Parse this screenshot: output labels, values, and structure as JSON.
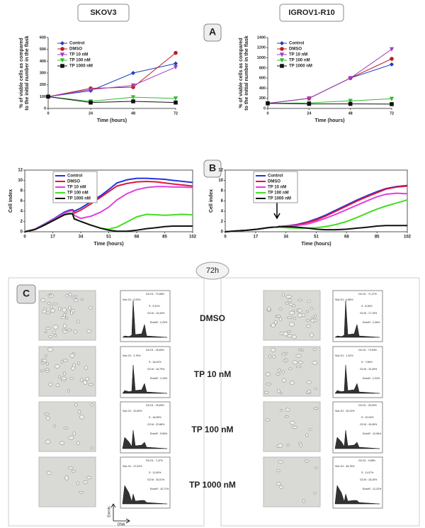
{
  "headers": [
    "SKOV3",
    "IGROV1-R10"
  ],
  "panel_labels": [
    "A",
    "B"
  ],
  "chart_data": [
    {
      "type": "line",
      "markers": true,
      "legend": "upper left",
      "legend_frame": false,
      "frame": false,
      "x": [
        0,
        24,
        48,
        72
      ],
      "xlim": [
        0,
        72
      ],
      "xticks": [
        0,
        24,
        48,
        72
      ],
      "ylim": [
        0,
        600
      ],
      "yticks": [
        0,
        100,
        200,
        300,
        400,
        500,
        600
      ],
      "xlabel": "Time (hours)",
      "ylabel": [
        "% of viable cells as compared",
        "to the initial number in the flask"
      ],
      "series": [
        {
          "name": "Control",
          "color": "#1f3fbf",
          "marker": "diamond",
          "values": [
            100,
            150,
            300,
            380
          ]
        },
        {
          "name": "DMSO",
          "color": "#b82020",
          "marker": "circle",
          "values": [
            100,
            170,
            180,
            470
          ]
        },
        {
          "name": "TP 10 nM",
          "color": "#a040c0",
          "marker": "triangle-down",
          "values": [
            100,
            160,
            195,
            350
          ]
        },
        {
          "name": "TP 100 nM",
          "color": "#33bb33",
          "marker": "triangle-down",
          "values": [
            100,
            60,
            95,
            85
          ]
        },
        {
          "name": "TP 1000 nM",
          "color": "#111111",
          "marker": "square",
          "values": [
            100,
            50,
            60,
            50
          ]
        }
      ]
    },
    {
      "type": "line",
      "markers": true,
      "legend": "upper left",
      "legend_frame": false,
      "frame": false,
      "x": [
        0,
        24,
        48,
        72
      ],
      "xlim": [
        0,
        72
      ],
      "xticks": [
        0,
        24,
        48,
        72
      ],
      "ylim": [
        0,
        1400
      ],
      "yticks": [
        0,
        200,
        400,
        600,
        800,
        1000,
        1200,
        1400
      ],
      "xlabel": "Time (hours)",
      "ylabel": [
        "% of viable cells as compared",
        "to the initial number in the flask"
      ],
      "series": [
        {
          "name": "Control",
          "color": "#1f3fbf",
          "marker": "diamond",
          "values": [
            100,
            200,
            600,
            870
          ]
        },
        {
          "name": "DMSO",
          "color": "#b82020",
          "marker": "circle",
          "values": [
            100,
            200,
            600,
            980
          ]
        },
        {
          "name": "TP 10 nM",
          "color": "#a040c0",
          "marker": "triangle-down",
          "values": [
            100,
            200,
            600,
            1170
          ]
        },
        {
          "name": "TP 100 nM",
          "color": "#33bb33",
          "marker": "triangle-down",
          "values": [
            100,
            110,
            150,
            190
          ]
        },
        {
          "name": "TP 1000 nM",
          "color": "#111111",
          "marker": "square",
          "values": [
            100,
            90,
            90,
            85
          ]
        }
      ]
    },
    {
      "type": "line",
      "markers": false,
      "legend": "upper left",
      "legend_frame": true,
      "frame": true,
      "x": [
        0,
        6,
        12,
        18,
        24,
        27,
        29,
        30,
        34,
        40,
        46,
        51,
        56,
        62,
        68,
        74,
        80,
        85,
        90,
        96,
        102
      ],
      "xlim": [
        0,
        102
      ],
      "xticks": [
        0,
        17,
        34,
        51,
        68,
        85,
        102
      ],
      "ylim": [
        0,
        12
      ],
      "yticks": [
        0,
        2,
        4,
        6,
        8,
        10,
        12
      ],
      "xlabel": "Time (hours)",
      "ylabel": [
        "Cell index"
      ],
      "series": [
        {
          "name": "Control",
          "color": "#2233dd",
          "values": [
            0,
            0.5,
            1.5,
            2.6,
            3.8,
            4.2,
            4.3,
            4.0,
            4.6,
            5.8,
            7.0,
            8.2,
            9.5,
            10.1,
            10.4,
            10.4,
            10.3,
            10.2,
            10.0,
            9.8,
            9.6
          ]
        },
        {
          "name": "DMSO",
          "color": "#e0153a",
          "values": [
            0,
            0.5,
            1.4,
            2.5,
            3.6,
            4.0,
            4.1,
            3.6,
            4.2,
            5.4,
            6.7,
            7.8,
            8.9,
            9.4,
            9.7,
            9.8,
            9.7,
            9.5,
            9.3,
            9.1,
            8.9
          ]
        },
        {
          "name": "TP 10 nM",
          "color": "#e040e0",
          "values": [
            0,
            0.5,
            1.4,
            2.5,
            3.6,
            4.0,
            4.1,
            3.2,
            2.6,
            3.0,
            3.8,
            4.8,
            6.2,
            7.4,
            8.2,
            8.6,
            8.8,
            8.8,
            8.7,
            8.7,
            8.6
          ]
        },
        {
          "name": "TP 100 nM",
          "color": "#44dd22",
          "values": [
            0,
            0.4,
            1.3,
            2.3,
            3.3,
            3.6,
            3.6,
            2.6,
            2.0,
            1.3,
            0.7,
            0.5,
            0.9,
            1.9,
            2.9,
            3.4,
            3.3,
            3.2,
            3.3,
            3.4,
            3.3
          ]
        },
        {
          "name": "TP 1000 nM",
          "color": "#111111",
          "values": [
            0,
            0.4,
            1.3,
            2.3,
            3.3,
            3.5,
            3.5,
            2.5,
            2.0,
            1.3,
            0.7,
            0.3,
            0.1,
            0.1,
            0.3,
            0.6,
            0.8,
            1.0,
            1.1,
            1.1,
            1.1
          ]
        }
      ]
    },
    {
      "type": "line",
      "markers": false,
      "legend": "upper left",
      "legend_frame": true,
      "frame": true,
      "x": [
        0,
        6,
        12,
        18,
        24,
        27,
        29,
        30,
        34,
        40,
        46,
        51,
        56,
        62,
        68,
        74,
        80,
        85,
        90,
        96,
        102
      ],
      "xlim": [
        0,
        102
      ],
      "xticks": [
        0,
        17,
        34,
        51,
        68,
        85,
        102
      ],
      "ylim": [
        0,
        12
      ],
      "yticks": [
        0,
        2,
        4,
        6,
        8,
        10,
        12
      ],
      "xlabel": "Time (hours)",
      "ylabel": [
        "Cell index"
      ],
      "series": [
        {
          "name": "Control",
          "color": "#2233dd",
          "values": [
            0,
            0.15,
            0.3,
            0.5,
            0.8,
            0.9,
            0.9,
            1.0,
            1.1,
            1.4,
            1.9,
            2.5,
            3.2,
            4.2,
            5.2,
            6.2,
            7.1,
            7.8,
            8.4,
            8.8,
            9.0
          ]
        },
        {
          "name": "DMSO",
          "color": "#e0153a",
          "values": [
            0,
            0.15,
            0.3,
            0.5,
            0.8,
            0.9,
            0.9,
            1.0,
            1.1,
            1.3,
            1.8,
            2.3,
            3.0,
            4.0,
            5.0,
            6.0,
            6.9,
            7.6,
            8.3,
            8.7,
            8.9
          ]
        },
        {
          "name": "TP 10 nM",
          "color": "#e040e0",
          "values": [
            0,
            0.15,
            0.3,
            0.5,
            0.8,
            0.9,
            0.9,
            1.0,
            1.0,
            1.2,
            1.5,
            2.0,
            2.6,
            3.4,
            4.3,
            5.2,
            6.1,
            6.8,
            7.3,
            7.5,
            7.4
          ]
        },
        {
          "name": "TP 100 nM",
          "color": "#44dd22",
          "values": [
            0,
            0.15,
            0.3,
            0.5,
            0.8,
            0.9,
            0.9,
            0.9,
            0.8,
            0.7,
            0.7,
            0.8,
            1.0,
            1.4,
            2.0,
            2.8,
            3.7,
            4.4,
            5.0,
            5.6,
            6.2
          ]
        },
        {
          "name": "TP 1000 nM",
          "color": "#111111",
          "values": [
            0,
            0.15,
            0.3,
            0.5,
            0.8,
            0.9,
            0.9,
            1.0,
            1.0,
            0.9,
            0.7,
            0.5,
            0.4,
            0.4,
            0.5,
            0.7,
            0.9,
            1.1,
            1.2,
            1.2,
            1.2
          ]
        }
      ]
    }
  ],
  "panel_c": {
    "label": "C",
    "time": "72h",
    "axis_y": "Events",
    "axis_x": "DNA",
    "conditions": [
      "DMSO",
      "TP 10 nM",
      "TP 100 nM",
      "TP 1000 nM"
    ],
    "skov3": [
      [
        "G0-G1 : 70,56%",
        "Sub-G1 : 0,93%",
        "S : 9,41%",
        "G2-M : 15,44%",
        "EndoR : 2,29%"
      ],
      [
        "G0-G1 : 49,83%",
        "Sub-G1 : 2,76%",
        "S : 18,42%",
        "G2-M : 15,79%",
        "EndoR : 2,15%"
      ],
      [
        "G0-G1 : 25,60%",
        "Sub-G1 : 20,89%",
        "S : 16,08%",
        "G2-M : 22,68%",
        "EndoR : 5,56%"
      ],
      [
        "G0-G1 : 7,47%",
        "Sub-G1 : 37,51%",
        "S : 11,00%",
        "G2-M : 34,01%",
        "EndoR : 10,71%"
      ]
    ],
    "igrov": [
      [
        "G0-G1 : 71,27%",
        "Sub-G1 : 0,86%",
        "S : 8,18%",
        "G2-M : 17,15%",
        "EndoR : 2,46%"
      ],
      [
        "G0-G1 : 73,59%",
        "Sub-G1 : 1,32%",
        "S : 7,98%",
        "G2-M : 15,45%",
        "EndoR : 2,23%"
      ],
      [
        "G0-G1 : 25,02%",
        "Sub-G1 : 26,19%",
        "S : 22,04%",
        "G2-M : 16,45%",
        "EndoR : 10,96%"
      ],
      [
        "G0-G1 : 9,58%",
        "Sub-G1 : 46,76%",
        "S : 11,97%",
        "G2-M : 18,15%",
        "EndoR : 12,22%"
      ]
    ]
  }
}
